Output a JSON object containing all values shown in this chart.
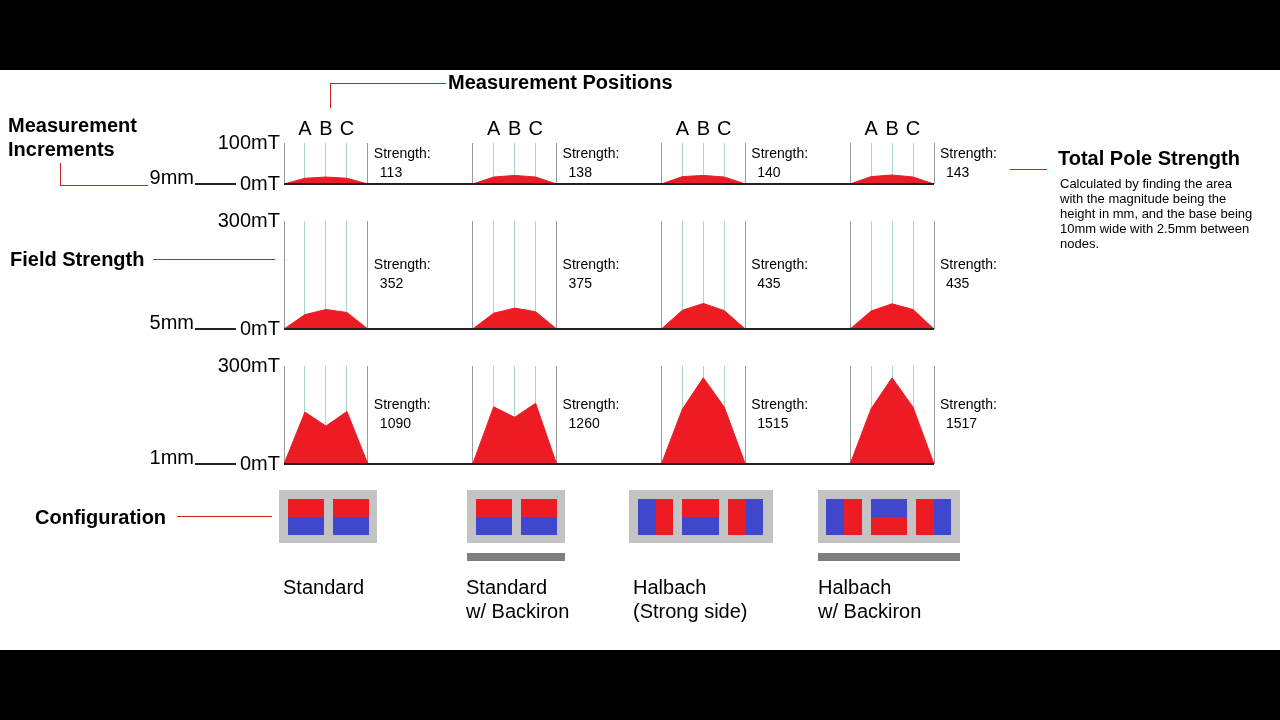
{
  "chart_data": [
    {
      "type": "area",
      "title": "Measurement Positions",
      "ylabel": "9mm",
      "categories": [
        null,
        "A",
        "B",
        "C",
        null,
        null,
        null,
        null,
        null,
        null,
        "A",
        "B",
        "C",
        null,
        null,
        null,
        null,
        null,
        null,
        "A",
        "B",
        "C",
        null,
        null,
        null,
        null,
        null,
        null,
        "A",
        "B",
        "C",
        null
      ],
      "ylim": [
        0,
        100
      ],
      "yticks": [
        {
          "value": 0,
          "label": "0mT"
        },
        {
          "value": 100,
          "label": "100mT"
        }
      ],
      "grid": "x",
      "legend": false,
      "series": [
        {
          "color": "#ed1c24",
          "values": [
            0,
            14,
            17,
            14,
            0,
            null,
            null,
            null,
            null,
            null,
            null,
            null,
            null,
            null,
            null,
            null,
            null,
            null,
            null,
            null,
            null,
            null,
            null,
            null,
            null,
            null,
            null,
            null,
            null,
            null,
            null,
            null
          ]
        },
        {
          "color": "#ed1c24",
          "values": [
            null,
            null,
            null,
            null,
            null,
            null,
            null,
            null,
            null,
            0,
            17,
            21,
            17,
            0,
            null,
            null,
            null,
            null,
            null,
            null,
            null,
            null,
            null,
            null,
            null,
            null,
            null,
            null,
            null,
            null,
            null,
            null
          ]
        },
        {
          "color": "#ed1c24",
          "values": [
            null,
            null,
            null,
            null,
            null,
            null,
            null,
            null,
            null,
            null,
            null,
            null,
            null,
            null,
            null,
            null,
            null,
            null,
            0,
            18,
            21,
            17,
            0,
            null,
            null,
            null,
            null,
            null,
            null,
            null,
            null,
            null
          ]
        },
        {
          "color": "#ed1c24",
          "values": [
            null,
            null,
            null,
            null,
            null,
            null,
            null,
            null,
            null,
            null,
            null,
            null,
            null,
            null,
            null,
            null,
            null,
            null,
            null,
            null,
            null,
            null,
            null,
            null,
            null,
            null,
            null,
            0,
            18,
            22,
            17,
            0
          ]
        }
      ],
      "annotations": [
        "Strength:\n113",
        "Strength:\n138",
        "Strength:\n140",
        "Strength:\n143"
      ]
    },
    {
      "type": "area",
      "ylabel": "5mm",
      "categories": [
        null,
        null,
        null,
        null,
        null,
        null,
        null,
        null,
        null,
        null,
        null,
        null,
        null,
        null,
        null,
        null,
        null,
        null,
        null,
        null,
        null,
        null,
        null,
        null,
        null,
        null,
        null,
        null,
        null,
        null,
        null,
        null
      ],
      "ylim": [
        0,
        300
      ],
      "yticks": [
        {
          "value": 0,
          "label": "0mT"
        },
        {
          "value": 300,
          "label": "300mT"
        }
      ],
      "grid": "x",
      "legend": false,
      "tick_labels": "y",
      "series": [
        {
          "color": "#ed1c24",
          "values": [
            0,
            40,
            54,
            46,
            0,
            null,
            null,
            null,
            null,
            null,
            null,
            null,
            null,
            null,
            null,
            null,
            null,
            null,
            null,
            null,
            null,
            null,
            null,
            null,
            null,
            null,
            null,
            null,
            null,
            null,
            null,
            null
          ]
        },
        {
          "color": "#ed1c24",
          "values": [
            null,
            null,
            null,
            null,
            null,
            null,
            null,
            null,
            null,
            0,
            44,
            58,
            48,
            0,
            null,
            null,
            null,
            null,
            null,
            null,
            null,
            null,
            null,
            null,
            null,
            null,
            null,
            null,
            null,
            null,
            null,
            null
          ]
        },
        {
          "color": "#ed1c24",
          "values": [
            null,
            null,
            null,
            null,
            null,
            null,
            null,
            null,
            null,
            null,
            null,
            null,
            null,
            null,
            null,
            null,
            null,
            null,
            0,
            52,
            71,
            51,
            0,
            null,
            null,
            null,
            null,
            null,
            null,
            null,
            null,
            null
          ]
        },
        {
          "color": "#ed1c24",
          "values": [
            null,
            null,
            null,
            null,
            null,
            null,
            null,
            null,
            null,
            null,
            null,
            null,
            null,
            null,
            null,
            null,
            null,
            null,
            null,
            null,
            null,
            null,
            null,
            null,
            null,
            null,
            null,
            0,
            50,
            70,
            54,
            0
          ]
        }
      ],
      "annotations": [
        "Strength:\n352",
        "Strength:\n375",
        "Strength:\n435",
        "Strength:\n435"
      ]
    },
    {
      "type": "area",
      "ylabel": "1mm",
      "categories": [
        null,
        null,
        null,
        null,
        null,
        null,
        null,
        null,
        null,
        null,
        null,
        null,
        null,
        null,
        null,
        null,
        null,
        null,
        null,
        null,
        null,
        null,
        null,
        null,
        null,
        null,
        null,
        null,
        null,
        null,
        null,
        null
      ],
      "ylim": [
        0,
        300
      ],
      "yticks": [
        {
          "value": 0,
          "label": "0mT"
        },
        {
          "value": 300,
          "label": "300mT"
        }
      ],
      "grid": "x",
      "legend": false,
      "tick_labels": "y",
      "series": [
        {
          "color": "#ed1c24",
          "values": [
            0,
            159,
            116,
            161,
            0,
            null,
            null,
            null,
            null,
            null,
            null,
            null,
            null,
            null,
            null,
            null,
            null,
            null,
            null,
            null,
            null,
            null,
            null,
            null,
            null,
            null,
            null,
            null,
            null,
            null,
            null,
            null
          ]
        },
        {
          "color": "#ed1c24",
          "values": [
            null,
            null,
            null,
            null,
            null,
            null,
            null,
            null,
            null,
            0,
            175,
            143,
            186,
            0,
            null,
            null,
            null,
            null,
            null,
            null,
            null,
            null,
            null,
            null,
            null,
            null,
            null,
            null,
            null,
            null,
            null,
            null
          ]
        },
        {
          "color": "#ed1c24",
          "values": [
            null,
            null,
            null,
            null,
            null,
            null,
            null,
            null,
            null,
            null,
            null,
            null,
            null,
            null,
            null,
            null,
            null,
            null,
            0,
            168,
            264,
            174,
            0,
            null,
            null,
            null,
            null,
            null,
            null,
            null,
            null,
            null
          ]
        },
        {
          "color": "#ed1c24",
          "values": [
            null,
            null,
            null,
            null,
            null,
            null,
            null,
            null,
            null,
            null,
            null,
            null,
            null,
            null,
            null,
            null,
            null,
            null,
            null,
            null,
            null,
            null,
            null,
            null,
            null,
            null,
            null,
            0,
            169,
            264,
            174,
            0
          ]
        }
      ],
      "annotations": [
        "Strength:\n1090",
        "Strength:\n1260",
        "Strength:\n1515",
        "Strength:\n1517"
      ]
    },
    {
      "type": "other",
      "title": "Total Pole Strength",
      "annotations": [
        "Calculated by finding the area with the magnitude being the height in mm, and the base being 10mm wide with 2.5mm between nodes.",
        "Measurement Increments",
        "Field Strength",
        "Configuration",
        "Standard",
        "Standard\nw/ Backiron",
        "Halbach\n(Strong side)",
        "Halbach\nw/ Backiron"
      ]
    }
  ]
}
